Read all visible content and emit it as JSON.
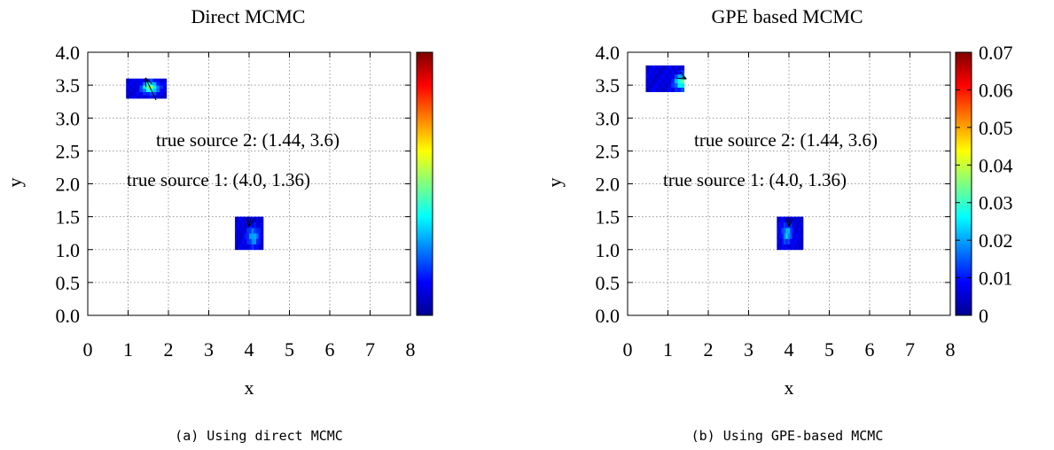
{
  "chart_data": [
    {
      "type": "heatmap",
      "title": "Direct MCMC",
      "xlabel": "x",
      "ylabel": "y",
      "xlim": [
        0,
        8
      ],
      "ylim": [
        0,
        4
      ],
      "xticks": [
        "0",
        "1",
        "2",
        "3",
        "4",
        "5",
        "6",
        "7",
        "8"
      ],
      "yticks": [
        "0.0",
        "0.5",
        "1.0",
        "1.5",
        "2.0",
        "2.5",
        "3.0",
        "3.5",
        "4.0"
      ],
      "grid": true,
      "colorbar": {
        "range": [
          0,
          0.07
        ],
        "labels_shown": false
      },
      "caption": "(a) Using direct MCMC",
      "regions": [
        {
          "x_range": [
            0.95,
            1.95
          ],
          "y_range": [
            3.3,
            3.6
          ],
          "peak": 0.035,
          "peak_at": [
            1.55,
            3.47
          ]
        },
        {
          "x_range": [
            3.65,
            4.35
          ],
          "y_range": [
            1.0,
            1.5
          ],
          "peak": 0.02,
          "peak_at": [
            4.1,
            1.2
          ]
        }
      ],
      "annotations": [
        {
          "text": "true source 2: (1.44, 3.6)",
          "x": 1.44,
          "y": 3.6
        },
        {
          "text": "true source 1: (4.0, 1.36)",
          "x": 4.0,
          "y": 1.36
        }
      ]
    },
    {
      "type": "heatmap",
      "title": "GPE based MCMC",
      "xlabel": "x",
      "ylabel": "y",
      "xlim": [
        0,
        8
      ],
      "ylim": [
        0,
        4
      ],
      "xticks": [
        "0",
        "1",
        "2",
        "3",
        "4",
        "5",
        "6",
        "7",
        "8"
      ],
      "yticks": [
        "0.0",
        "0.5",
        "1.0",
        "1.5",
        "2.0",
        "2.5",
        "3.0",
        "3.5",
        "4.0"
      ],
      "grid": true,
      "colorbar": {
        "range": [
          0,
          0.07
        ],
        "labels_shown": true,
        "ticks": [
          "0",
          "0.01",
          "0.02",
          "0.03",
          "0.04",
          "0.05",
          "0.06",
          "0.07"
        ]
      },
      "caption": "(b) Using GPE-based MCMC",
      "regions": [
        {
          "x_range": [
            0.45,
            1.4
          ],
          "y_range": [
            3.4,
            3.8
          ],
          "peak": 0.03,
          "peak_at": [
            1.35,
            3.55
          ]
        },
        {
          "x_range": [
            3.7,
            4.35
          ],
          "y_range": [
            1.0,
            1.5
          ],
          "peak": 0.02,
          "peak_at": [
            3.95,
            1.25
          ]
        }
      ],
      "annotations": [
        {
          "text": "true source 2: (1.44, 3.6)",
          "x": 1.44,
          "y": 3.6
        },
        {
          "text": "true source 1: (4.0, 1.36)",
          "x": 4.0,
          "y": 1.36
        }
      ]
    }
  ]
}
